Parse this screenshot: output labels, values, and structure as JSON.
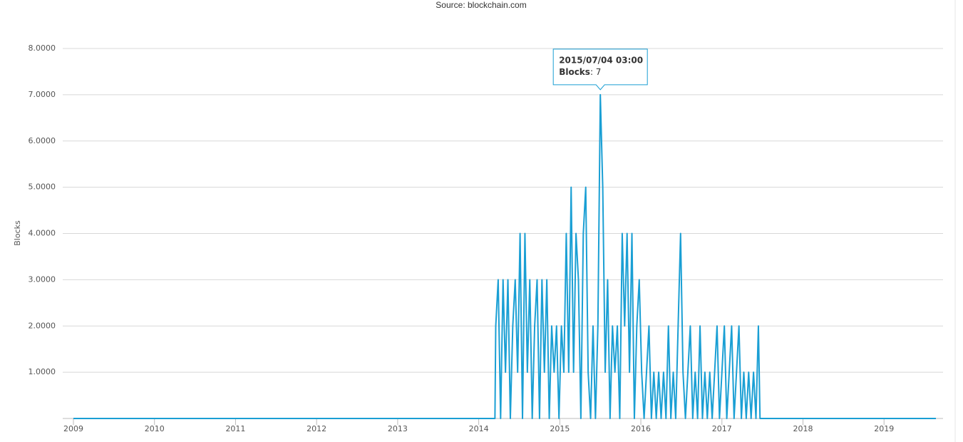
{
  "chart_data": {
    "type": "line",
    "subtitle": "Source: blockchain.com",
    "y_label": "Blocks",
    "xlim": [
      2009,
      2019.64
    ],
    "xticks": [
      2009,
      2010,
      2011,
      2012,
      2013,
      2014,
      2015,
      2016,
      2017,
      2018,
      2019
    ],
    "ylim": [
      0,
      8
    ],
    "yticks": [
      {
        "value": 1,
        "label": "1.0000"
      },
      {
        "value": 2,
        "label": "2.0000"
      },
      {
        "value": 3,
        "label": "3.0000"
      },
      {
        "value": 4,
        "label": "4.0000"
      },
      {
        "value": 5,
        "label": "5.0000"
      },
      {
        "value": 6,
        "label": "6.0000"
      },
      {
        "value": 7,
        "label": "7.0000"
      },
      {
        "value": 8,
        "label": "8.0000"
      }
    ],
    "grid": true,
    "series": [
      {
        "name": "Blocks",
        "color": "#1a9fd4",
        "x": [
          2009,
          2014.2,
          2014.21,
          2014.24,
          2014.27,
          2014.3,
          2014.33,
          2014.36,
          2014.39,
          2014.42,
          2014.45,
          2014.48,
          2014.51,
          2014.54,
          2014.57,
          2014.6,
          2014.63,
          2014.66,
          2014.69,
          2014.72,
          2014.75,
          2014.78,
          2014.81,
          2014.84,
          2014.87,
          2014.9,
          2014.93,
          2014.96,
          2014.99,
          2015.02,
          2015.05,
          2015.08,
          2015.11,
          2015.14,
          2015.17,
          2015.2,
          2015.23,
          2015.26,
          2015.29,
          2015.32,
          2015.35,
          2015.38,
          2015.41,
          2015.44,
          2015.47,
          2015.5,
          2015.53,
          2015.56,
          2015.59,
          2015.62,
          2015.65,
          2015.68,
          2015.71,
          2015.74,
          2015.77,
          2015.8,
          2015.83,
          2015.86,
          2015.89,
          2015.92,
          2015.95,
          2015.98,
          2016.01,
          2016.04,
          2016.07,
          2016.1,
          2016.13,
          2016.16,
          2016.19,
          2016.22,
          2016.25,
          2016.28,
          2016.31,
          2016.34,
          2016.37,
          2016.4,
          2016.43,
          2016.46,
          2016.49,
          2016.52,
          2016.55,
          2016.58,
          2016.61,
          2016.64,
          2016.67,
          2016.7,
          2016.73,
          2016.76,
          2016.79,
          2016.82,
          2016.85,
          2016.88,
          2016.91,
          2016.94,
          2016.97,
          2017.0,
          2017.03,
          2017.06,
          2017.09,
          2017.12,
          2017.15,
          2017.18,
          2017.21,
          2017.24,
          2017.27,
          2017.3,
          2017.33,
          2017.36,
          2017.39,
          2017.42,
          2017.45,
          2017.47,
          2019.64
        ],
        "values": [
          0,
          0,
          2,
          3,
          0,
          3,
          1,
          3,
          0,
          2,
          3,
          1,
          4,
          0,
          4,
          1,
          3,
          0,
          2,
          3,
          0,
          3,
          1,
          3,
          0,
          2,
          1,
          2,
          0,
          2,
          1,
          4,
          1,
          5,
          1,
          4,
          3,
          0,
          4,
          5,
          1,
          0,
          2,
          0,
          2,
          7,
          5,
          1,
          3,
          0,
          2,
          1,
          2,
          0,
          4,
          2,
          4,
          1,
          4,
          0,
          2,
          3,
          1,
          0,
          1,
          2,
          0,
          1,
          0,
          1,
          0,
          1,
          0,
          2,
          0,
          1,
          0,
          2,
          4,
          1,
          0,
          1,
          2,
          0,
          1,
          0,
          2,
          0,
          1,
          0,
          1,
          0,
          1,
          2,
          0,
          1,
          2,
          0,
          1,
          2,
          0,
          1,
          2,
          0,
          1,
          0,
          1,
          0,
          1,
          0,
          2,
          0,
          0
        ]
      }
    ],
    "tooltip": {
      "date": "2015/07/04 03:00",
      "name": "Blocks",
      "x": 2015.5,
      "value": 7
    }
  }
}
